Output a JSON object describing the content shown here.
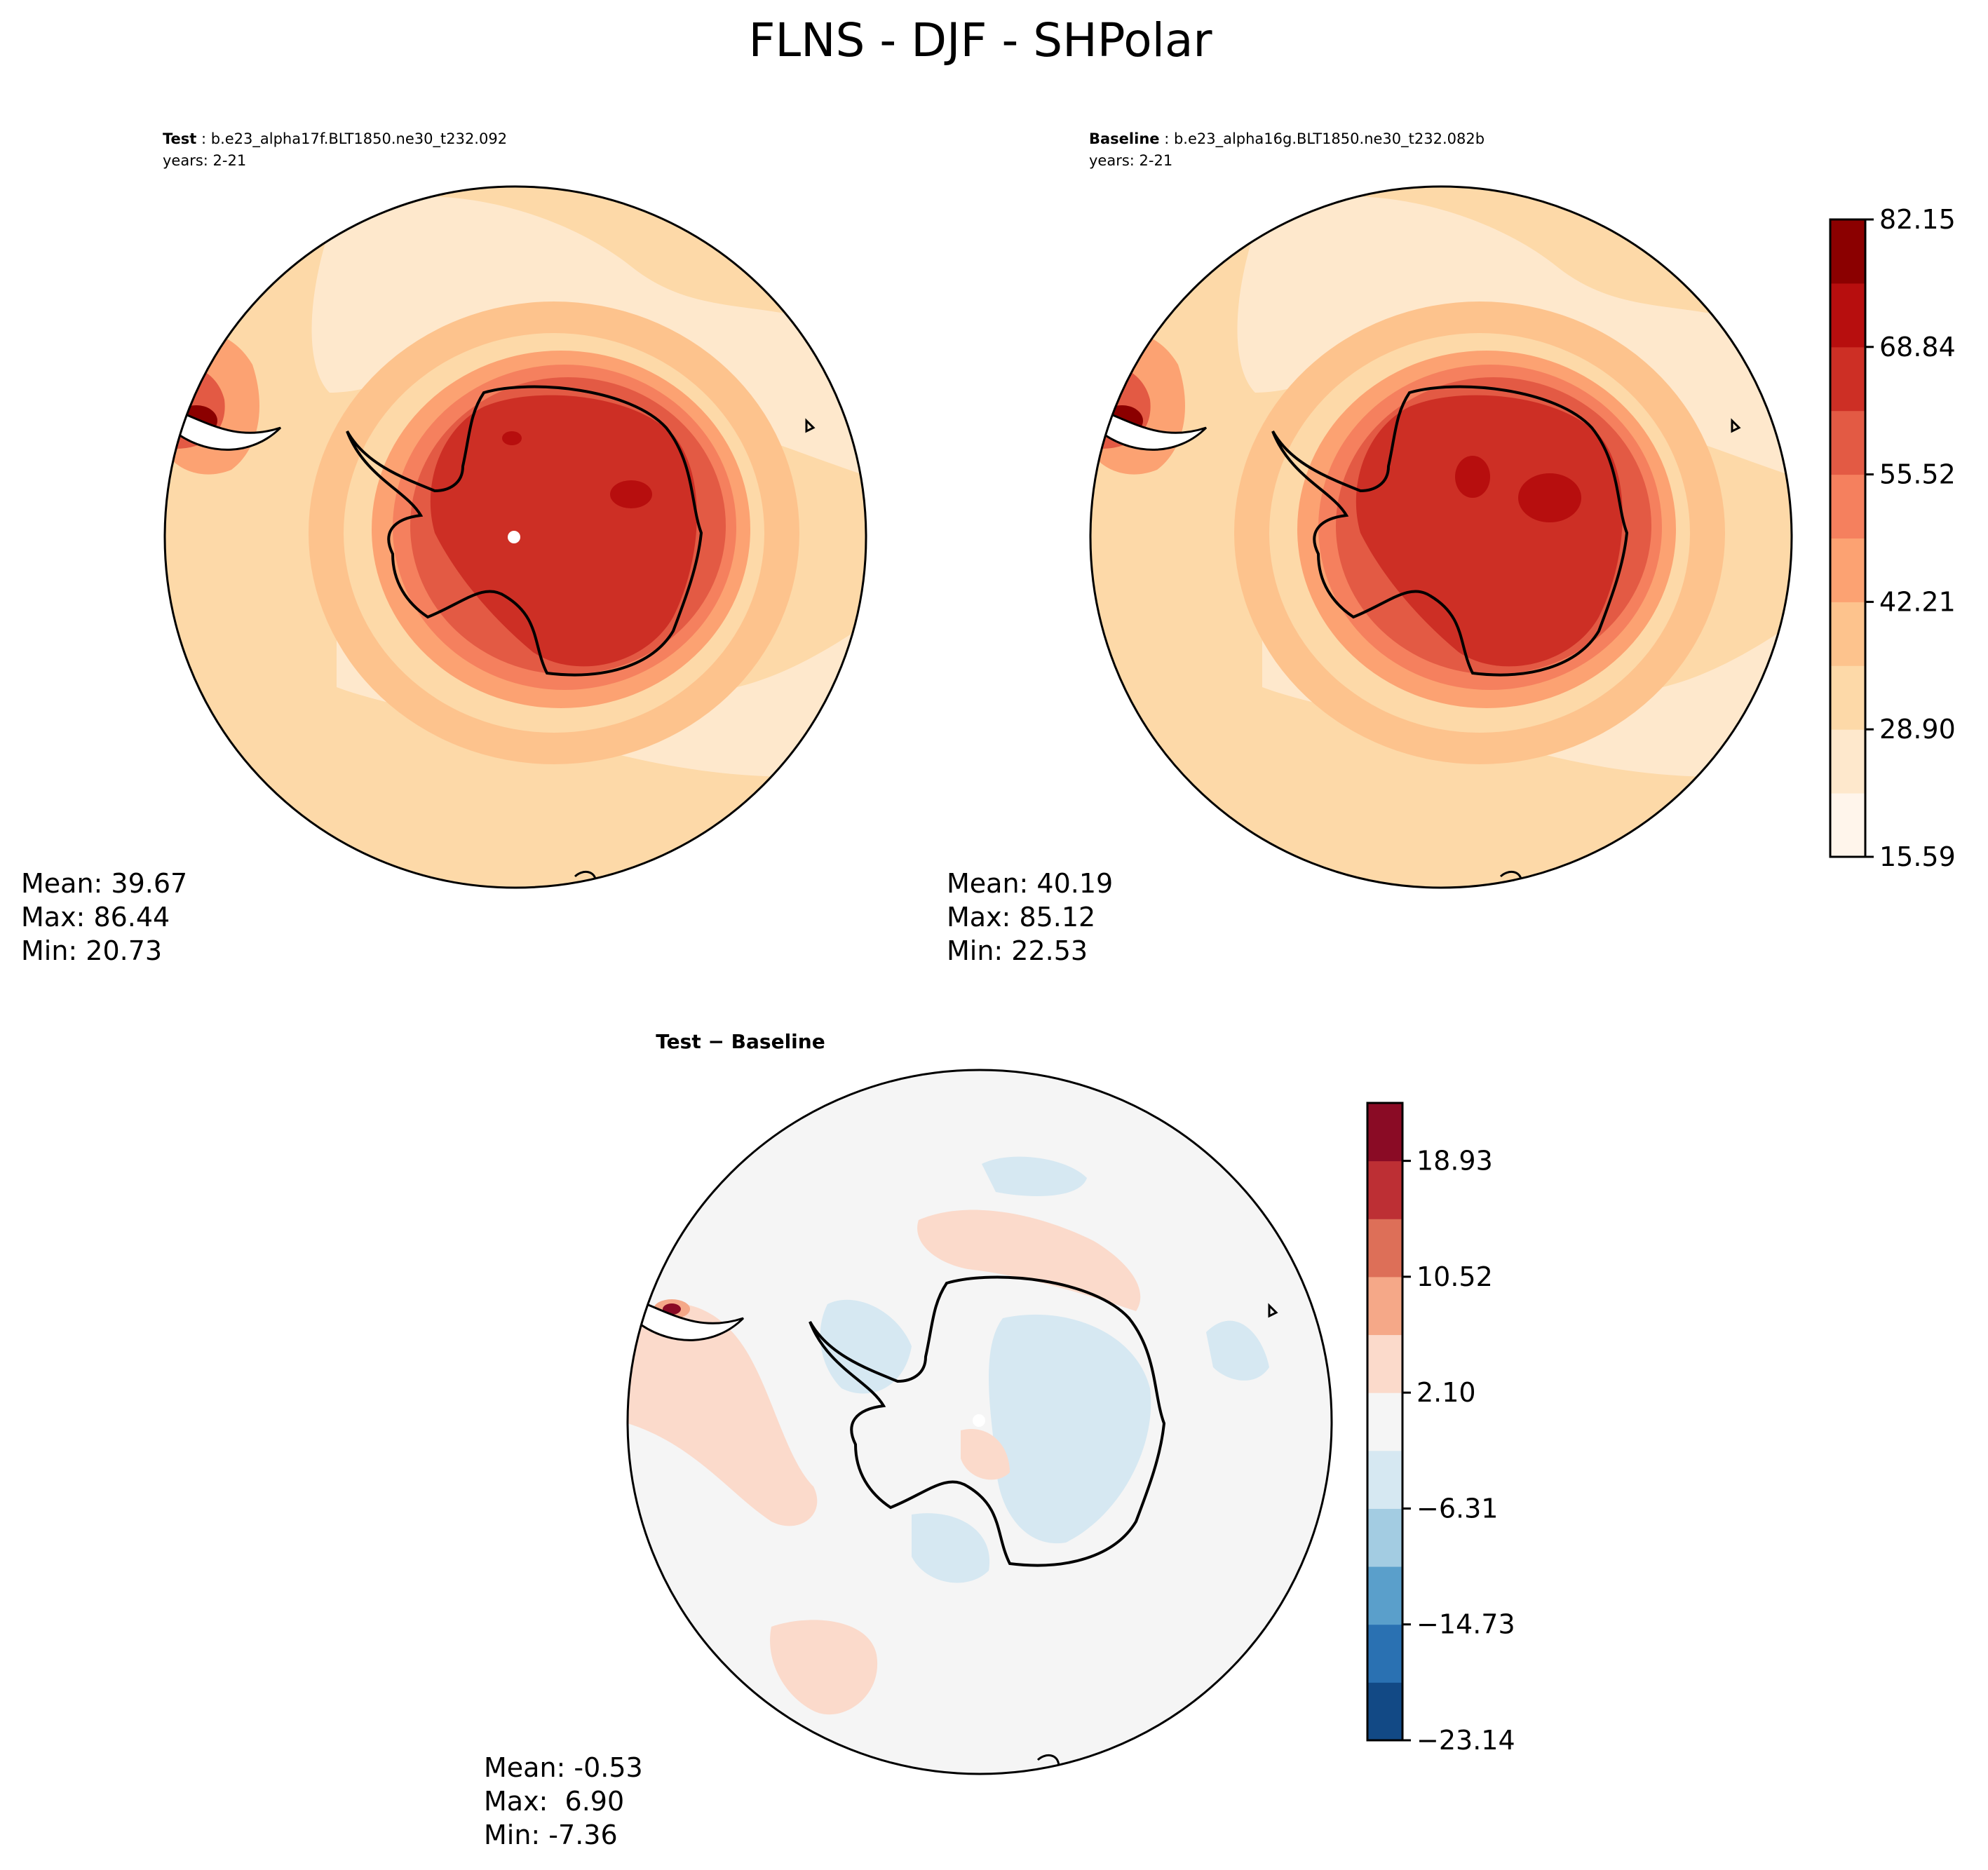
{
  "figure": {
    "title": "FLNS - DJF - SHPolar"
  },
  "panels": {
    "test": {
      "heading_bold": "Test",
      "heading_rest": " : b.e23_alpha17f.BLT1850.ne30_t232.092",
      "years": "years: 2-21",
      "stats": {
        "mean_label": "Mean: 39.67",
        "max_label": "Max: 86.44",
        "min_label": "Min: 20.73"
      }
    },
    "baseline": {
      "heading_bold": "Baseline",
      "heading_rest": " : b.e23_alpha16g.BLT1850.ne30_t232.082b",
      "years": "years: 2-21",
      "stats": {
        "mean_label": "Mean: 40.19",
        "max_label": "Max: 85.12",
        "min_label": "Min: 22.53"
      }
    },
    "diff": {
      "heading": "Test − Baseline",
      "stats": {
        "mean_label": "Mean: -0.53",
        "max_label": "Max:  6.90",
        "min_label": "Min: -7.36"
      }
    }
  },
  "chart_data": [
    {
      "type": "heatmap",
      "panel": "Test",
      "case": "b.e23_alpha17f.BLT1850.ne30_t232.092",
      "years": "2-21",
      "projection": "south polar stereographic",
      "mean": 39.67,
      "max": 86.44,
      "min": 20.73,
      "colormap": "Reds (OrRd-like)",
      "levels": [
        15.59,
        22.25,
        28.9,
        35.56,
        42.21,
        48.87,
        55.52,
        62.18,
        68.84,
        75.49,
        82.15,
        88.81
      ],
      "tick_labels": [
        "15.59",
        "28.90",
        "42.21",
        "55.52",
        "68.84",
        "82.15"
      ],
      "colors": [
        "#fff5eb",
        "#fee8cc",
        "#fdd9a8",
        "#fdc38d",
        "#fca272",
        "#f5805e",
        "#e35a44",
        "#cd2f25",
        "#b70e0e",
        "#8b0000"
      ]
    },
    {
      "type": "heatmap",
      "panel": "Baseline",
      "case": "b.e23_alpha16g.BLT1850.ne30_t232.082b",
      "years": "2-21",
      "projection": "south polar stereographic",
      "mean": 40.19,
      "max": 85.12,
      "min": 22.53,
      "levels": [
        15.59,
        22.25,
        28.9,
        35.56,
        42.21,
        48.87,
        55.52,
        62.18,
        68.84,
        75.49,
        82.15,
        88.81
      ]
    },
    {
      "type": "heatmap",
      "panel": "Test − Baseline",
      "projection": "south polar stereographic",
      "mean": -0.53,
      "max": 6.9,
      "min": -7.36,
      "colormap": "RdBu_r",
      "levels": [
        -23.14,
        -18.93,
        -14.73,
        -10.52,
        -6.31,
        -2.1,
        2.1,
        6.31,
        10.52,
        14.73,
        18.93,
        23.14
      ],
      "tick_labels": [
        "−23.14",
        "−14.73",
        "−6.31",
        "2.10",
        "10.52",
        "18.93"
      ],
      "colors": [
        "#124985",
        "#2a71b2",
        "#5a9fcb",
        "#a3cce2",
        "#d6e8f2",
        "#f5f5f5",
        "#fbdacb",
        "#f5a888",
        "#dd6f58",
        "#bd2f34",
        "#8a0b25"
      ]
    }
  ],
  "colorbars": {
    "abs": {
      "colors": [
        "#fff5eb",
        "#fee8cc",
        "#fdd9a8",
        "#fdc38d",
        "#fca272",
        "#f5805e",
        "#e35a44",
        "#cd2f25",
        "#b70e0e",
        "#8b0000"
      ],
      "tick_labels": [
        "15.59",
        "28.90",
        "42.21",
        "55.52",
        "68.84",
        "82.15"
      ]
    },
    "diff": {
      "colors": [
        "#124985",
        "#2a71b2",
        "#5a9fcb",
        "#a3cce2",
        "#d6e8f2",
        "#f5f5f5",
        "#fbdacb",
        "#f5a888",
        "#dd6f58",
        "#bd2f34",
        "#8a0b25"
      ],
      "tick_labels": [
        "−23.14",
        "−14.73",
        "−6.31",
        "2.10",
        "10.52",
        "18.93"
      ]
    }
  }
}
